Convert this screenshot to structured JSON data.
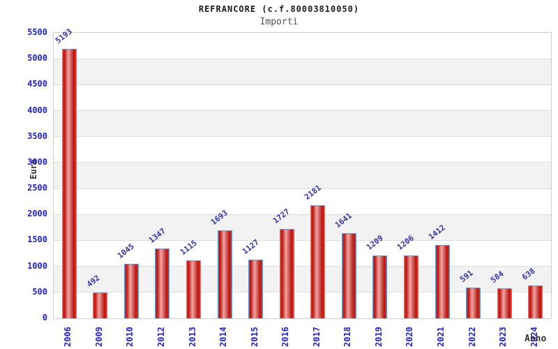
{
  "page": {
    "title": "REFRANCORE (c.f.80003810050)",
    "subtitle": "Importi"
  },
  "chart_data": {
    "type": "bar",
    "title": "REFRANCORE (c.f.80003810050)",
    "subtitle": "Importi",
    "xlabel": "Anno",
    "ylabel": "Euro",
    "categories": [
      "2006",
      "2009",
      "2010",
      "2012",
      "2013",
      "2014",
      "2015",
      "2016",
      "2017",
      "2018",
      "2019",
      "2020",
      "2021",
      "2022",
      "2023",
      "2024"
    ],
    "values": [
      5193,
      492,
      1045,
      1347,
      1115,
      1693,
      1127,
      1727,
      2181,
      1641,
      1209,
      1206,
      1412,
      591,
      584,
      638
    ],
    "ylim": [
      0,
      5500
    ],
    "ytick_step": 500,
    "grid": "horizontal",
    "background_bands": "alternating",
    "legend": "none",
    "value_labels": "rotated-above-bars",
    "colors": {
      "bar_fill_edge": "#ee3428",
      "bar_fill_dark": "#b41511",
      "bar_fill_light": "#f2a5a2",
      "bar_border": "#58a0dc",
      "axis_tick_text": "#2222cc",
      "value_label_text": "#3333aa",
      "band_gray": "#f2f2f2",
      "band_white": "#ffffff",
      "gridline": "#dcdcdc",
      "plot_border": "#cccccc",
      "title_text": "#1a1a1a",
      "subtitle_text": "#555555",
      "axis_label_text": "#333333"
    }
  }
}
